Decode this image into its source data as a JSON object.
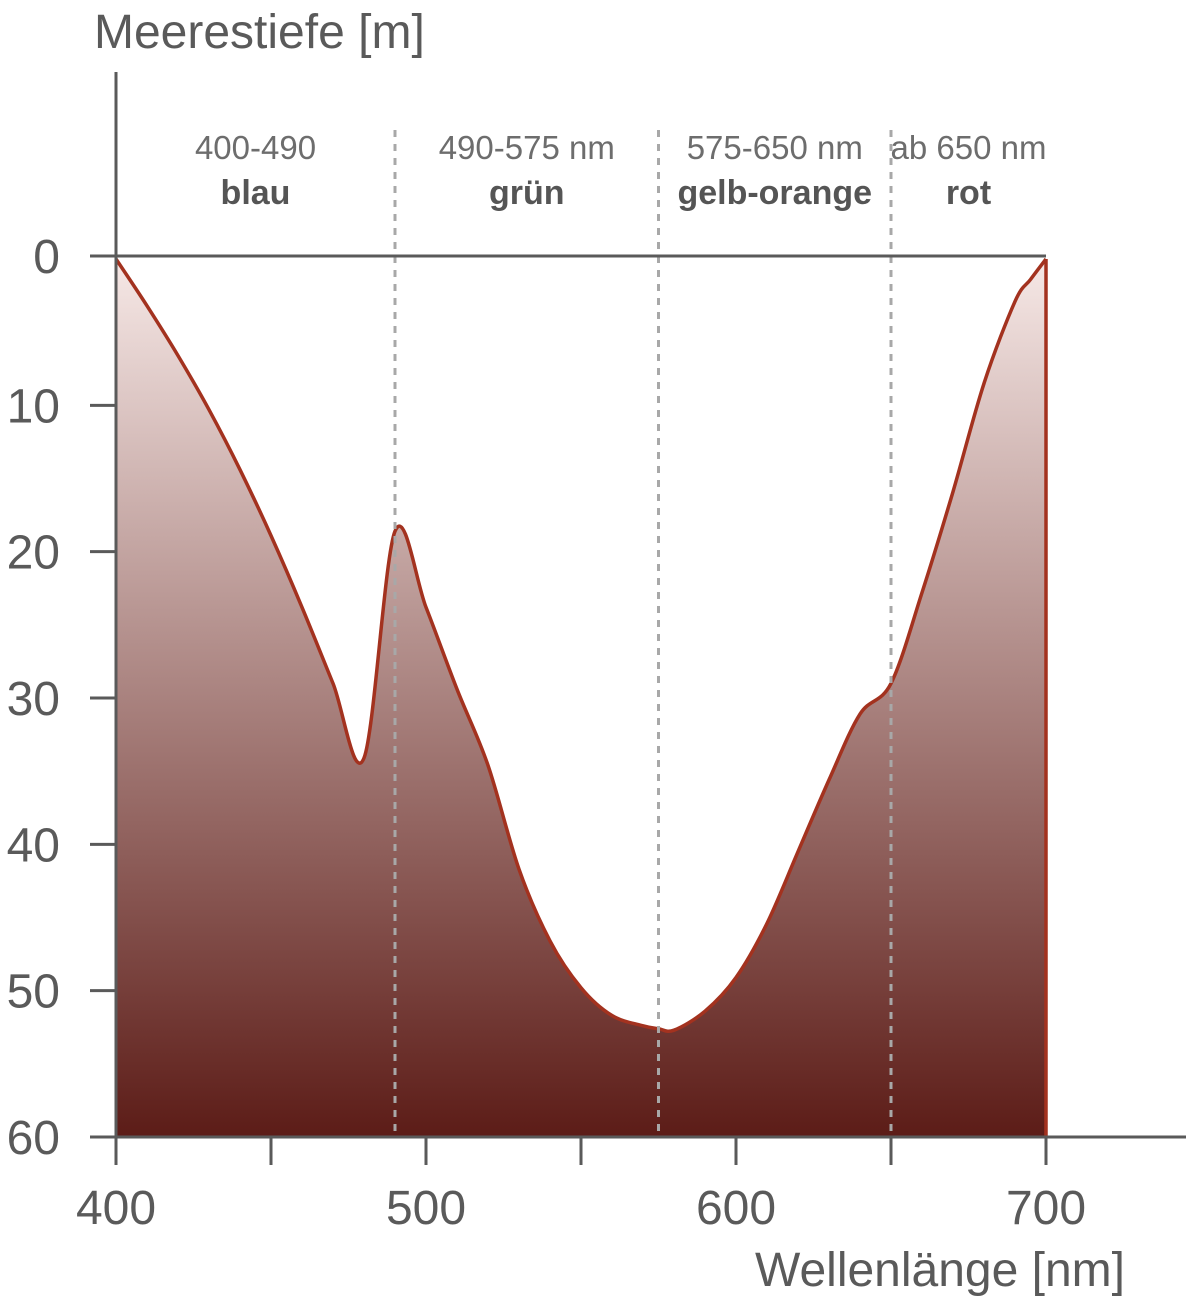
{
  "chart_data": {
    "type": "area",
    "title": "",
    "ylabel": "Meerestiefe [m]",
    "xlabel": "Wellenlänge [nm]",
    "xlim": [
      400,
      700
    ],
    "ylim": [
      0,
      60
    ],
    "y_inverted": true,
    "x_ticks": [
      400,
      500,
      600,
      700
    ],
    "x_tick_labels": [
      "400",
      "500",
      "600",
      "700"
    ],
    "y_ticks": [
      0,
      10,
      20,
      30,
      40,
      50,
      60
    ],
    "y_tick_labels": [
      "0",
      "10",
      "20",
      "30",
      "40",
      "50",
      "60"
    ],
    "grid": false,
    "bands": [
      {
        "from": 400,
        "to": 490,
        "range_label": "400-490",
        "name": "blau"
      },
      {
        "from": 490,
        "to": 575,
        "range_label": "490-575 nm",
        "name": "grün"
      },
      {
        "from": 575,
        "to": 650,
        "range_label": "575-650 nm",
        "name": "gelb-orange"
      },
      {
        "from": 650,
        "to": 700,
        "range_label": "ab 650 nm",
        "name": "rot"
      }
    ],
    "band_boundaries": [
      490,
      575,
      650
    ],
    "x": [
      400,
      410,
      420,
      430,
      440,
      450,
      460,
      470,
      480,
      490,
      500,
      510,
      520,
      530,
      540,
      550,
      560,
      570,
      575,
      580,
      590,
      600,
      610,
      620,
      630,
      640,
      650,
      660,
      670,
      680,
      690,
      695,
      700
    ],
    "y": [
      0,
      3.2,
      6.6,
      10.3,
      14.4,
      18.9,
      23.8,
      29.0,
      34.1,
      18.6,
      23.8,
      29.4,
      34.6,
      41.7,
      46.6,
      49.8,
      51.7,
      52.4,
      52.6,
      52.7,
      51.4,
      49.1,
      45.4,
      40.5,
      35.6,
      31.1,
      29.0,
      22.8,
      15.9,
      8.5,
      2.9,
      1.4,
      0
    ],
    "colors": {
      "line": "#a3321f",
      "fill_top": "#f6e8e6",
      "fill_bottom": "#5c1c17",
      "axis": "#5a5a5a",
      "boundary": "#a8a8a8"
    }
  }
}
